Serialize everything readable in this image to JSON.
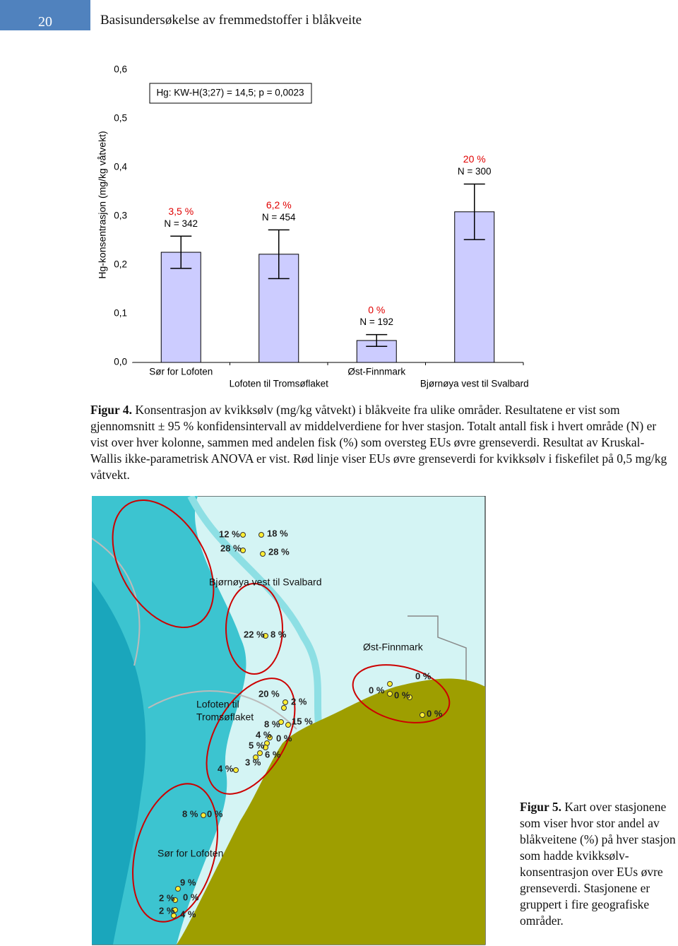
{
  "header": {
    "page_number": "20",
    "title": "Basisundersøkelse av fremmedstoffer i blåkveite"
  },
  "chart_data": {
    "type": "bar",
    "y_label": "Hg-konsentrasjon (mg/kg våtvekt)",
    "annotation": "Hg: KW-H(3;27) = 14,5; p = 0,0023",
    "categories": [
      "Sør for Lofoten",
      "Lofoten til Tromsøflaket",
      "Øst-Finnmark",
      "Bjørnøya vest til Svalbard"
    ],
    "values": [
      0.226,
      0.222,
      0.045,
      0.309
    ],
    "errors": [
      0.033,
      0.05,
      0.012,
      0.057
    ],
    "percent_labels": [
      "3,5 %",
      "6,2 %",
      "0 %",
      "20 %"
    ],
    "n_labels": [
      "N = 342",
      "N = 454",
      "N = 192",
      "N = 300"
    ],
    "color": "#ccccff",
    "ylim": [
      0,
      0.6
    ],
    "yticks": [
      {
        "value": 0,
        "label": "0,0"
      },
      {
        "value": 0.1,
        "label": "0,1"
      },
      {
        "value": 0.2,
        "label": "0,2"
      },
      {
        "value": 0.3,
        "label": "0,3"
      },
      {
        "value": 0.4,
        "label": "0,4"
      },
      {
        "value": 0.5,
        "label": "0,5"
      },
      {
        "value": 0.6,
        "label": "0,6"
      }
    ]
  },
  "figure4_caption": {
    "label": "Figur 4.",
    "text": "Konsentrasjon av kvikksølv (mg/kg våtvekt) i blåkveite fra ulike områder. Resultatene er vist som gjennomsnitt ± 95 % konfidensintervall av middelverdiene for hver stasjon. Totalt antall fisk i hvert område (N) er vist over hver kolonne, sammen med andelen fisk (%) som oversteg EUs øvre grenseverdi. Resultat av Kruskal-Wallis ikke-parametrisk ANOVA er vist. Rød linje viser EUs øvre grenseverdi for kvikksølv i fiskefilet på 0,5 mg/kg våtvekt."
  },
  "map": {
    "labels": [
      "12 %",
      "18 %",
      "28 %",
      "28 %",
      "Bjørnøya vest til Svalbard",
      "22 %",
      "8 %",
      "Øst-Finnmark",
      "0 %",
      "0 %",
      "0 %",
      "0 %",
      "Lofoten til",
      "Tromsøflaket",
      "20 %",
      "2 %",
      "8 %",
      "15 %",
      "4 %",
      "0 %",
      "5 %",
      "6 %",
      "3 %",
      "4 %",
      "8 %",
      "0 %",
      "Sør for Lofoten",
      "9 %",
      "2 %",
      "0 %",
      "2 %",
      "4 %"
    ]
  },
  "figure5_caption": {
    "label": "Figur 5.",
    "text": "Kart over stasjonene som viser hvor stor andel av blåkveitene (%) på hver stasjon som hadde kvikksølv-konsentrasjon over EUs øvre grenseverdi. Stasjonene er gruppert i fire geografiske områder."
  }
}
